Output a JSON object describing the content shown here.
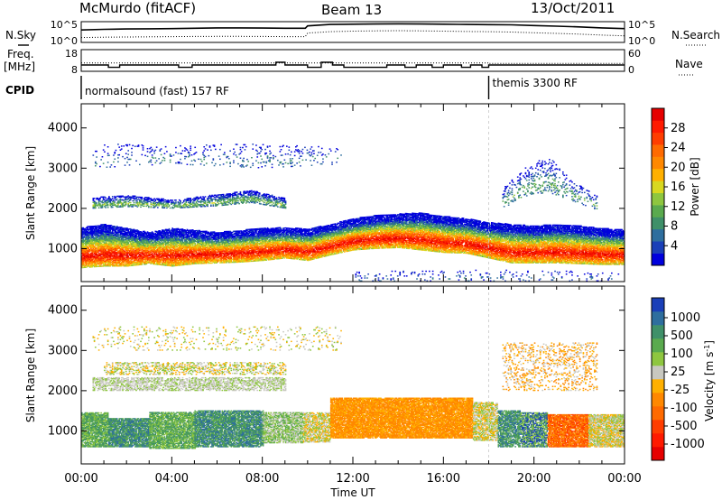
{
  "header": {
    "station": "McMurdo (fitACF)",
    "beam": "Beam 13",
    "date": "13/Oct/2011"
  },
  "left_labels": {
    "nsky": "N.Sky",
    "freq_line1": "Freq.",
    "freq_line2": "[MHz]",
    "cpid": "CPID"
  },
  "right_labels": {
    "nsearch": "N.Search",
    "nave": "Nave"
  },
  "cpid_modes": [
    {
      "label": "normalsound (fast) 157 RF",
      "start_hour": 0
    },
    {
      "label": "themis 3300 RF",
      "start_hour": 18
    }
  ],
  "chart_data": [
    {
      "type": "line",
      "title": "N.Sky / N.Search",
      "left_ticks": [
        "10^5",
        "10^0"
      ],
      "right_ticks": [
        "10^5",
        "10^0"
      ],
      "series": [
        {
          "name": "N.Sky",
          "style": "solid",
          "x": [
            0,
            1,
            2,
            3,
            4,
            5,
            6,
            7,
            8,
            9,
            9.9,
            10,
            11,
            12,
            13,
            14,
            15,
            16,
            17,
            18,
            19,
            20,
            21,
            22,
            23,
            24
          ],
          "level": [
            0.62,
            0.66,
            0.68,
            0.69,
            0.7,
            0.72,
            0.74,
            0.74,
            0.73,
            0.72,
            0.72,
            0.86,
            0.94,
            0.96,
            0.97,
            0.98,
            0.97,
            0.96,
            0.94,
            0.93,
            0.92,
            0.88,
            0.84,
            0.8,
            0.74,
            0.7
          ]
        },
        {
          "name": "N.Search",
          "style": "dotted",
          "x": [
            0,
            1,
            2,
            3,
            4,
            5,
            6,
            7,
            8,
            9,
            9.9,
            10,
            11,
            12,
            13,
            14,
            15,
            16,
            17,
            18,
            19,
            20,
            21,
            22,
            23,
            24
          ],
          "level": [
            0.18,
            0.2,
            0.21,
            0.22,
            0.23,
            0.24,
            0.25,
            0.25,
            0.24,
            0.23,
            0.23,
            0.44,
            0.52,
            0.55,
            0.57,
            0.58,
            0.57,
            0.55,
            0.53,
            0.52,
            0.5,
            0.46,
            0.42,
            0.38,
            0.32,
            0.28
          ]
        }
      ]
    },
    {
      "type": "line",
      "title": "Freq. / Nave",
      "left_ticks": [
        "18",
        "8"
      ],
      "right_ticks": [
        "60",
        "0"
      ],
      "series": [
        {
          "name": "Freq.",
          "style": "solid",
          "x": [
            0,
            1.2,
            1.2,
            1.7,
            1.7,
            4.3,
            4.3,
            4.9,
            4.9,
            8.6,
            8.6,
            9.0,
            9.0,
            10.0,
            10.0,
            10.6,
            10.6,
            11.1,
            11.1,
            11.6,
            11.6,
            13.5,
            13.5,
            14.3,
            14.3,
            14.8,
            14.8,
            15.5,
            15.5,
            16.0,
            16.0,
            16.8,
            16.8,
            17.2,
            17.2,
            17.7,
            17.7,
            18.0,
            18.0,
            24
          ],
          "y": [
            10.5,
            10.5,
            9.2,
            9.2,
            10.5,
            10.5,
            9.2,
            9.2,
            10.5,
            10.5,
            12.0,
            12.0,
            10.5,
            10.5,
            9.2,
            9.2,
            12.0,
            12.0,
            10.5,
            10.5,
            9.2,
            9.2,
            10.5,
            10.5,
            9.2,
            9.2,
            10.5,
            10.5,
            9.2,
            9.2,
            10.5,
            10.5,
            9.2,
            9.2,
            10.5,
            10.5,
            9.2,
            9.2,
            10.5,
            10.5
          ]
        },
        {
          "name": "Nave",
          "style": "dotted",
          "x": [
            0,
            18,
            18,
            24
          ],
          "y": [
            22,
            22,
            20,
            20
          ]
        }
      ]
    },
    {
      "type": "heatmap",
      "title": "Power",
      "xlabel": "Time UT",
      "ylabel": "Slant Range [km]",
      "x_ticks": [
        "00:00",
        "04:00",
        "08:00",
        "12:00",
        "16:00",
        "20:00",
        "00:00"
      ],
      "xlim": [
        0,
        24
      ],
      "y_ticks": [
        1000,
        2000,
        3000,
        4000
      ],
      "ylim": [
        180,
        4600
      ],
      "colorbar": {
        "label": "Power [dB]",
        "ticks": [
          4,
          8,
          12,
          16,
          20,
          24,
          28
        ],
        "range": [
          0,
          32
        ],
        "colors": [
          "#0000dd",
          "#1a3fb8",
          "#2e6e9e",
          "#3f9069",
          "#5aaa4e",
          "#8ec63f",
          "#d8d820",
          "#ffb000",
          "#ff8800",
          "#ff6a00",
          "#ff3d00",
          "#ff1a00",
          "#e60000"
        ]
      },
      "layers": [
        {
          "name": "main-band",
          "t0": 0,
          "t1": 24,
          "ctrl_t": [
            0,
            1,
            2,
            3,
            4,
            5,
            6,
            7,
            8,
            9,
            10,
            11,
            12,
            13,
            14,
            15,
            16,
            17,
            18,
            19,
            20,
            21,
            22,
            23,
            24
          ],
          "ctrl_lo": [
            520,
            560,
            560,
            620,
            560,
            620,
            640,
            660,
            700,
            760,
            700,
            840,
            960,
            1000,
            1020,
            960,
            900,
            880,
            760,
            640,
            640,
            640,
            620,
            600,
            600
          ],
          "ctrl_hi": [
            1520,
            1600,
            1500,
            1400,
            1500,
            1450,
            1400,
            1450,
            1500,
            1520,
            1480,
            1600,
            1740,
            1820,
            1860,
            1880,
            1800,
            1740,
            1640,
            1600,
            1560,
            1600,
            1560,
            1500,
            1460
          ],
          "peak": 30,
          "density": 0.88
        },
        {
          "name": "upper-band",
          "t0": 0.5,
          "t1": 9.0,
          "ctrl_t": [
            0.5,
            2,
            4,
            6,
            7.5,
            9
          ],
          "ctrl_lo": [
            2000,
            2040,
            2000,
            2060,
            2140,
            2000
          ],
          "ctrl_hi": [
            2260,
            2320,
            2200,
            2340,
            2440,
            2240
          ],
          "peak": 13,
          "density": 0.55
        },
        {
          "name": "far-echoes-left",
          "t0": 0.5,
          "t1": 11.5,
          "ctrl_t": [
            0.5,
            4,
            8,
            11.5
          ],
          "ctrl_lo": [
            3000,
            3100,
            3000,
            3100
          ],
          "ctrl_hi": [
            3600,
            3550,
            3600,
            3500
          ],
          "peak": 7,
          "density": 0.08
        },
        {
          "name": "arc-echoes",
          "t0": 18.6,
          "t1": 22.8,
          "ctrl_t": [
            18.6,
            19.6,
            20.6,
            21.6,
            22.8
          ],
          "ctrl_lo": [
            2000,
            2300,
            2400,
            2200,
            1950
          ],
          "ctrl_hi": [
            2500,
            3000,
            3300,
            2700,
            2300
          ],
          "peak": 11,
          "density": 0.18
        },
        {
          "name": "near-range",
          "t0": 12.0,
          "t1": 23.8,
          "ctrl_t": [
            12,
            18,
            23.8
          ],
          "ctrl_lo": [
            190,
            190,
            190
          ],
          "ctrl_hi": [
            420,
            460,
            420
          ],
          "peak": 6,
          "density": 0.07
        }
      ]
    },
    {
      "type": "heatmap",
      "title": "Velocity",
      "xlabel": "Time UT",
      "ylabel": "Slant Range [km]",
      "x_ticks": [
        "00:00",
        "04:00",
        "08:00",
        "12:00",
        "16:00",
        "20:00",
        "00:00"
      ],
      "xlim": [
        0,
        24
      ],
      "y_ticks": [
        1000,
        2000,
        3000,
        4000
      ],
      "ylim": [
        180,
        4600
      ],
      "colorbar": {
        "label": "Velocity [m s^-1]",
        "ticks": [
          "1000",
          "500",
          "100",
          "25",
          "-25",
          "-100",
          "-500",
          "-1000"
        ],
        "colors": [
          "#1a3fb8",
          "#2e6e9e",
          "#3f9069",
          "#5aaa4e",
          "#8ec63f",
          "#c8c8c0",
          "#ffb000",
          "#ff8800",
          "#ff6a00",
          "#ff3d00",
          "#ff1a00",
          "#e60000"
        ]
      },
      "segments": [
        {
          "t0": 0.0,
          "t1": 1.2,
          "lo": 600,
          "hi": 1450,
          "colors": [
            "#5aaa4e",
            "#8ec63f",
            "#3f9069"
          ]
        },
        {
          "t0": 1.2,
          "t1": 3.0,
          "lo": 600,
          "hi": 1300,
          "colors": [
            "#3f9069",
            "#5aaa4e",
            "#2e6e9e"
          ]
        },
        {
          "t0": 3.0,
          "t1": 5.0,
          "lo": 560,
          "hi": 1450,
          "colors": [
            "#5aaa4e",
            "#8ec63f",
            "#3f9069"
          ]
        },
        {
          "t0": 5.0,
          "t1": 8.0,
          "lo": 600,
          "hi": 1500,
          "colors": [
            "#3f9069",
            "#2e6e9e",
            "#5aaa4e"
          ]
        },
        {
          "t0": 8.0,
          "t1": 9.8,
          "lo": 700,
          "hi": 1450,
          "colors": [
            "#c8c8c0",
            "#8ec63f",
            "#5aaa4e"
          ]
        },
        {
          "t0": 9.8,
          "t1": 11.0,
          "lo": 720,
          "hi": 1450,
          "colors": [
            "#8ec63f",
            "#c8c8c0",
            "#ffb000"
          ]
        },
        {
          "t0": 11.0,
          "t1": 17.3,
          "lo": 820,
          "hi": 1820,
          "colors": [
            "#ff8800",
            "#ffb000",
            "#ff8800"
          ]
        },
        {
          "t0": 17.3,
          "t1": 18.4,
          "lo": 760,
          "hi": 1700,
          "colors": [
            "#ffb000",
            "#c8c8c0",
            "#8ec63f"
          ]
        },
        {
          "t0": 18.4,
          "t1": 19.4,
          "lo": 600,
          "hi": 1500,
          "colors": [
            "#5aaa4e",
            "#3f9069",
            "#2e6e9e"
          ]
        },
        {
          "t0": 19.4,
          "t1": 20.6,
          "lo": 600,
          "hi": 1450,
          "colors": [
            "#1a3fb8",
            "#3f9069",
            "#8ec63f"
          ]
        },
        {
          "t0": 20.6,
          "t1": 22.4,
          "lo": 600,
          "hi": 1400,
          "colors": [
            "#ff3d00",
            "#ff6a00",
            "#ff8800"
          ]
        },
        {
          "t0": 22.4,
          "t1": 24.0,
          "lo": 600,
          "hi": 1400,
          "colors": [
            "#c8c8c0",
            "#ffb000",
            "#8ec63f"
          ]
        },
        {
          "t0": 0.5,
          "t1": 9.0,
          "lo": 2000,
          "hi": 2320,
          "colors": [
            "#c8c8c0",
            "#c8c8c0",
            "#8ec63f"
          ]
        },
        {
          "t0": 1.0,
          "t1": 9.0,
          "lo": 2400,
          "hi": 2700,
          "colors": [
            "#c8c8c0",
            "#8ec63f",
            "#ffb000"
          ]
        },
        {
          "t0": 18.6,
          "t1": 22.8,
          "lo": 2000,
          "hi": 3200,
          "colors": [
            "#ff8800",
            "#ffb000",
            "#c8c8c0"
          ]
        },
        {
          "t0": 0.5,
          "t1": 11.5,
          "lo": 3000,
          "hi": 3600,
          "colors": [
            "#c8c8c0",
            "#8ec63f",
            "#ffb000"
          ]
        }
      ],
      "segment_density": [
        0.82,
        0.85,
        0.8,
        0.82,
        0.7,
        0.7,
        0.9,
        0.7,
        0.75,
        0.75,
        0.88,
        0.8,
        0.55,
        0.35,
        0.18,
        0.08
      ]
    }
  ]
}
